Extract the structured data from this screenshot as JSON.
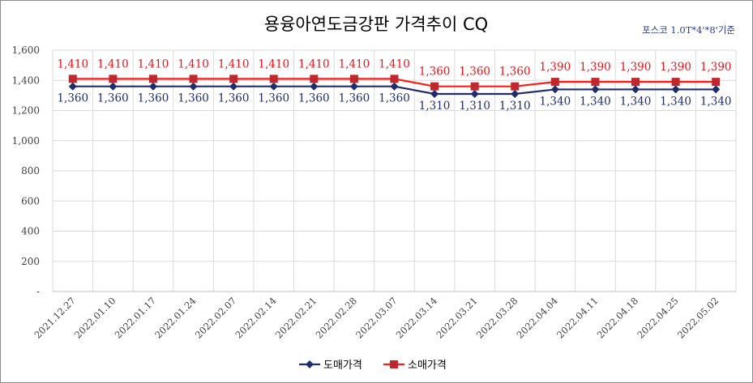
{
  "chart_data": {
    "type": "line",
    "title": "용융아연도금강판 가격추이 CQ",
    "note": "포스코 1.0T*4'*8'기준",
    "categories": [
      "2021.12.27",
      "2022.01.10",
      "2022.01.17",
      "2022.01.24",
      "2022.02.07",
      "2022.02.14",
      "2022.02.21",
      "2022.02.28",
      "2022.03.07",
      "2022.03.14",
      "2022.03.21",
      "2022.03.28",
      "2022.04.04",
      "2022.04.11",
      "2022.04.18",
      "2022.04.25",
      "2022.05.02"
    ],
    "series": [
      {
        "name": "도매가격",
        "color": "#1f2d6b",
        "marker": "diamond",
        "values": [
          1360,
          1360,
          1360,
          1360,
          1360,
          1360,
          1360,
          1360,
          1360,
          1310,
          1310,
          1310,
          1340,
          1340,
          1340,
          1340,
          1340
        ],
        "labels": [
          "1,360",
          "1,360",
          "1,360",
          "1,360",
          "1,360",
          "1,360",
          "1,360",
          "1,360",
          "1,360",
          "1,310",
          "1,310",
          "1,310",
          "1,340",
          "1,340",
          "1,340",
          "1,340",
          "1,340"
        ]
      },
      {
        "name": "소매가격",
        "color": "#c0282d",
        "marker": "square",
        "values": [
          1410,
          1410,
          1410,
          1410,
          1410,
          1410,
          1410,
          1410,
          1410,
          1360,
          1360,
          1360,
          1390,
          1390,
          1390,
          1390,
          1390
        ],
        "labels": [
          "1,410",
          "1,410",
          "1,410",
          "1,410",
          "1,410",
          "1,410",
          "1,410",
          "1,410",
          "1,410",
          "1,360",
          "1,360",
          "1,360",
          "1,390",
          "1,390",
          "1,390",
          "1,390",
          "1,390"
        ]
      }
    ],
    "ylim": [
      0,
      1600
    ],
    "yticks": [
      0,
      200,
      400,
      600,
      800,
      1000,
      1200,
      1400,
      1600
    ],
    "ytick_labels": [
      "-",
      "200",
      "400",
      "600",
      "800",
      "1,000",
      "1,200",
      "1,400",
      "1,600"
    ],
    "grid": true,
    "legend_position": "bottom-center",
    "xlabel": "",
    "ylabel": ""
  }
}
